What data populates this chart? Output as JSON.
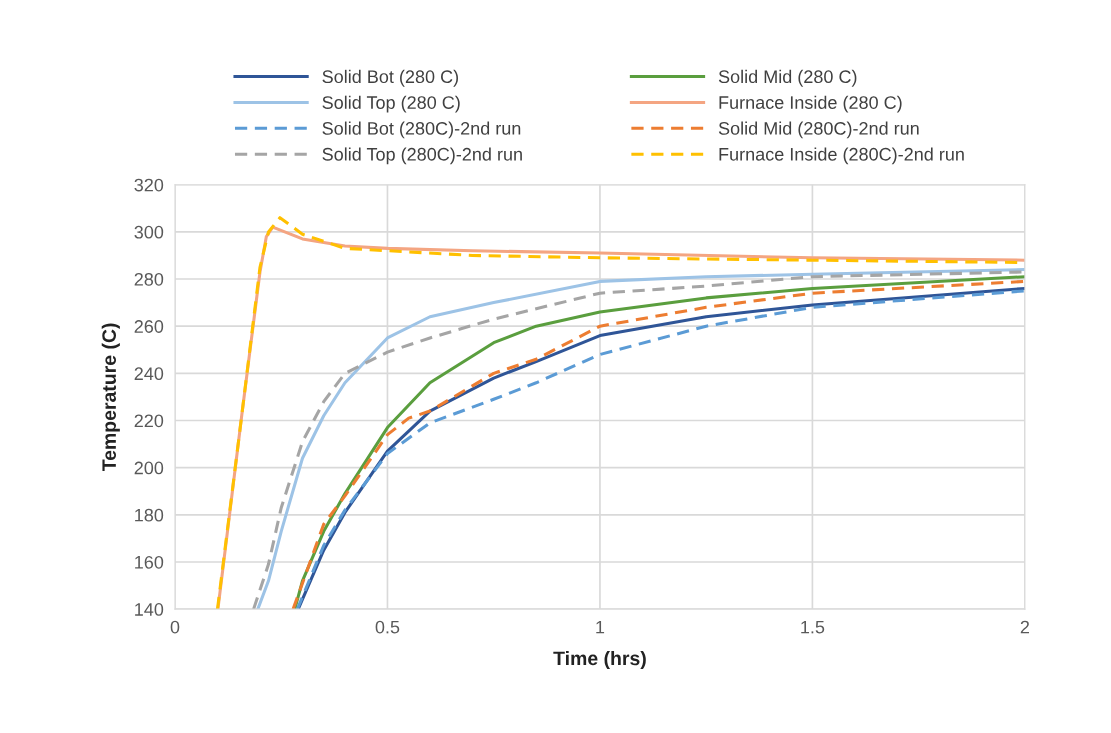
{
  "chart_data": {
    "type": "line",
    "xlabel": "Time (hrs)",
    "ylabel": "Temperature (C)",
    "xlim": [
      0,
      2
    ],
    "xticks": [
      0,
      0.5,
      1,
      1.5,
      2
    ],
    "ylim": [
      140,
      320
    ],
    "yticks": [
      140,
      160,
      180,
      200,
      220,
      240,
      260,
      280,
      300,
      320
    ],
    "grid": true,
    "legend": "top",
    "marker": "none",
    "series": [
      {
        "name": "Solid Bot (280 C)",
        "color": "#2f5597",
        "line_style": "solid",
        "x": [
          0.29,
          0.35,
          0.4,
          0.5,
          0.6,
          0.75,
          0.85,
          1.0,
          1.25,
          1.5,
          2.0
        ],
        "values": [
          140,
          165,
          181,
          207,
          224,
          238,
          245,
          256,
          264,
          269,
          276
        ]
      },
      {
        "name": "Solid Mid (280 C)",
        "color": "#5a9e3e",
        "line_style": "solid",
        "x": [
          0.282,
          0.3,
          0.35,
          0.4,
          0.5,
          0.6,
          0.75,
          0.85,
          1.0,
          1.25,
          1.5,
          2.0
        ],
        "values": [
          140,
          152,
          173,
          189,
          217,
          236,
          253,
          260,
          266,
          272,
          276,
          281
        ]
      },
      {
        "name": "Solid Top (280 C)",
        "color": "#9dc3e6",
        "line_style": "solid",
        "x": [
          0.195,
          0.22,
          0.25,
          0.3,
          0.35,
          0.4,
          0.5,
          0.6,
          0.75,
          1.0,
          1.25,
          1.5,
          2.0
        ],
        "values": [
          140,
          152,
          173,
          204,
          222,
          236,
          255,
          264,
          270,
          279,
          281,
          282,
          284
        ]
      },
      {
        "name": "Furnace Inside (280 C)",
        "color": "#f4a582",
        "line_style": "solid",
        "x": [
          0.101,
          0.157,
          0.2,
          0.215,
          0.23,
          0.3,
          0.4,
          0.5,
          0.7,
          1.0,
          1.5,
          2.0
        ],
        "values": [
          140,
          222,
          283,
          298,
          302,
          297,
          294,
          293,
          292,
          291,
          289,
          288
        ]
      },
      {
        "name": "Solid Bot (280C)-2nd run",
        "color": "#5b9bd5",
        "line_style": "dashed",
        "x": [
          0.288,
          0.35,
          0.4,
          0.5,
          0.6,
          0.75,
          0.85,
          1.0,
          1.25,
          1.5,
          2.0
        ],
        "values": [
          140,
          167,
          182,
          206,
          219,
          229,
          236,
          248,
          260,
          268,
          275
        ]
      },
      {
        "name": "Solid Mid (280C)-2nd run",
        "color": "#ed7d31",
        "line_style": "dashed",
        "x": [
          0.278,
          0.35,
          0.4,
          0.5,
          0.55,
          0.6,
          0.75,
          0.85,
          1.0,
          1.25,
          1.5,
          2.0
        ],
        "values": [
          140,
          176,
          188,
          214,
          221,
          224,
          240,
          246,
          260,
          268,
          274,
          279
        ]
      },
      {
        "name": "Solid Top (280C)-2nd run",
        "color": "#a5a5a5",
        "line_style": "dashed",
        "x": [
          0.185,
          0.22,
          0.25,
          0.3,
          0.35,
          0.4,
          0.5,
          0.6,
          0.75,
          1.0,
          1.25,
          1.5,
          2.0
        ],
        "values": [
          140,
          159,
          183,
          211,
          228,
          240,
          249,
          255,
          263,
          274,
          277,
          281,
          283
        ]
      },
      {
        "name": "Furnace Inside (280C)-2nd run",
        "color": "#ffc000",
        "line_style": "dashed",
        "x": [
          0.1,
          0.157,
          0.2,
          0.22,
          0.247,
          0.3,
          0.4,
          0.5,
          0.7,
          1.0,
          1.5,
          2.0
        ],
        "values": [
          140,
          222,
          285,
          300,
          306,
          299,
          293,
          292,
          290,
          289,
          288,
          287
        ]
      }
    ]
  }
}
